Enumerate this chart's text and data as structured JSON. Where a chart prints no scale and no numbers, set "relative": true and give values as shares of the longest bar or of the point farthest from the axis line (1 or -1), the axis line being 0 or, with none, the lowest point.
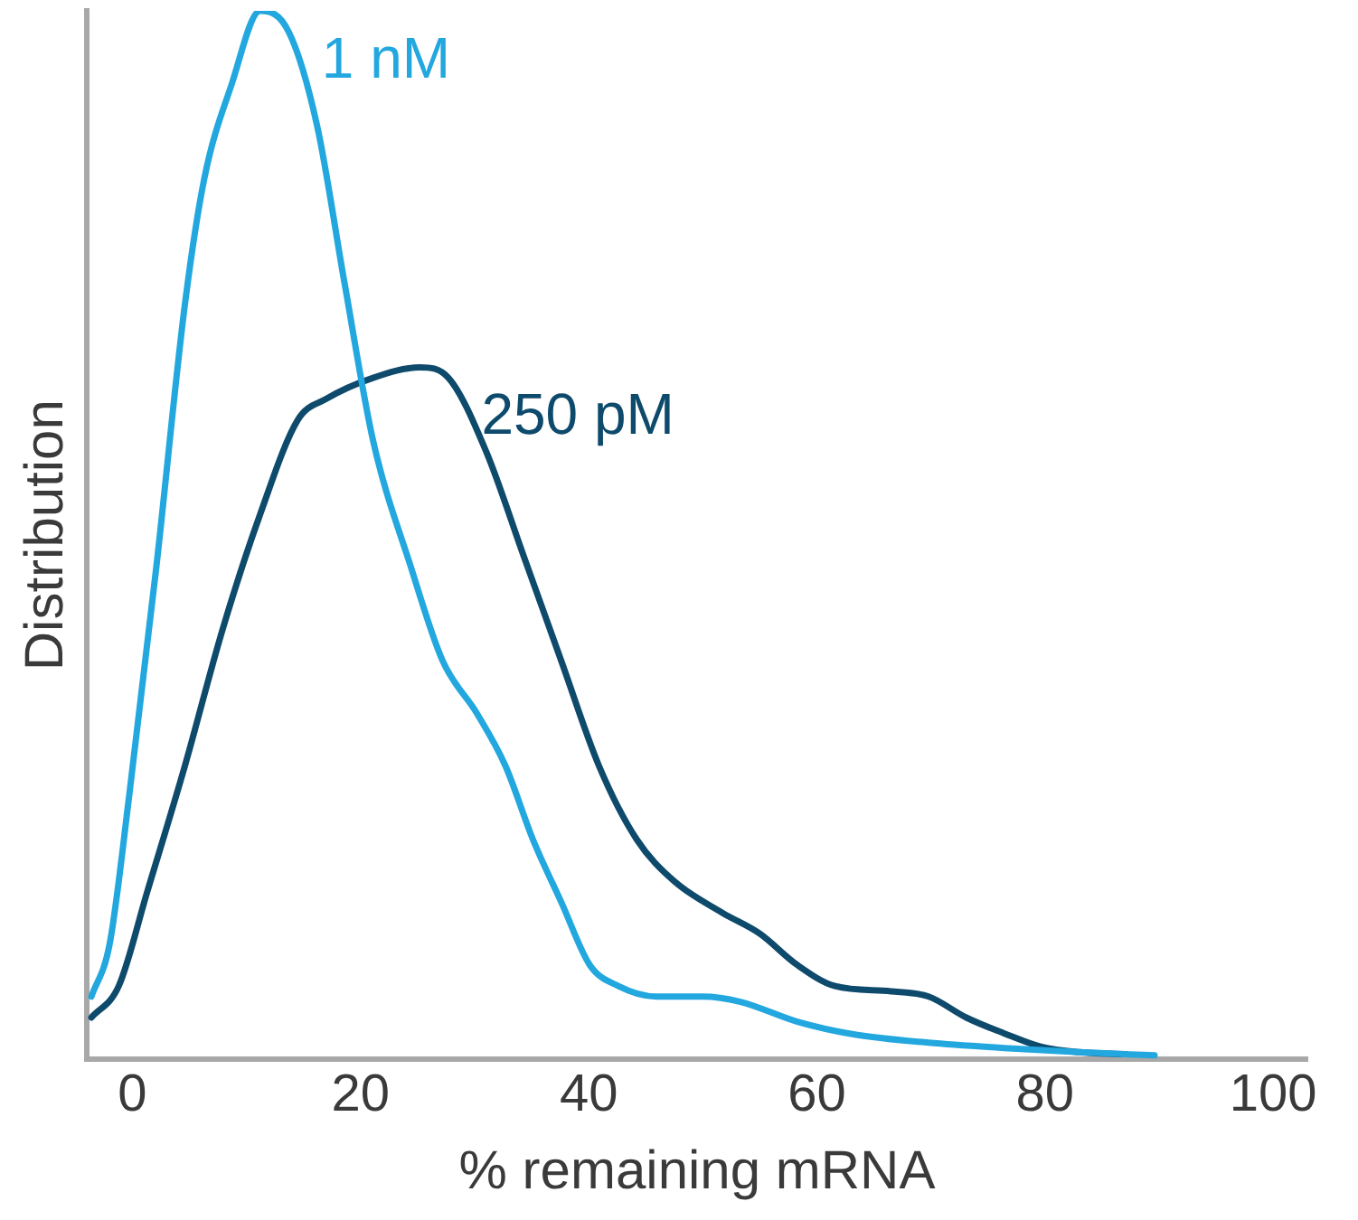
{
  "chart_data": {
    "type": "line",
    "xlabel": "% remaining mRNA",
    "ylabel": "Distribution",
    "relative": true,
    "xlim": [
      -4,
      103
    ],
    "xticks": [
      0,
      20,
      40,
      60,
      80,
      100
    ],
    "grid": false,
    "legend": false,
    "marker": "none",
    "line_style": "solid",
    "series": [
      {
        "name": "1 nM",
        "color": "#22a7df",
        "x": [
          -3.6,
          -2,
          -0.3,
          2.1,
          4.6,
          6.3,
          8.7,
          11.2,
          13.7,
          16.2,
          18.6,
          21.1,
          24.4,
          27.2,
          30.2,
          32.7,
          35.1,
          37.6,
          40.1,
          42.6,
          45.9,
          50,
          53.3,
          58.3,
          63.2,
          69.8,
          76.4,
          83,
          89.6
        ],
        "values": [
          0.06,
          0.11,
          0.25,
          0.47,
          0.72,
          0.84,
          0.93,
          1,
          0.98,
          0.89,
          0.74,
          0.59,
          0.47,
          0.38,
          0.33,
          0.28,
          0.21,
          0.15,
          0.09,
          0.07,
          0.06,
          0.06,
          0.055,
          0.036,
          0.024,
          0.016,
          0.011,
          0.007,
          0.004
        ]
      },
      {
        "name": "250 pM",
        "color": "#0e4a6b",
        "x": [
          -3.6,
          -1.2,
          1.3,
          4.6,
          7.9,
          11.2,
          14.5,
          17,
          21.1,
          25.2,
          27.7,
          31,
          34.3,
          37.6,
          40.9,
          44.2,
          47.5,
          51.7,
          55,
          58.3,
          61.6,
          66.5,
          69.8,
          73.1,
          76.4,
          79.7,
          83,
          87.1
        ],
        "values": [
          0.04,
          0.07,
          0.16,
          0.28,
          0.41,
          0.52,
          0.61,
          0.63,
          0.65,
          0.66,
          0.65,
          0.58,
          0.48,
          0.38,
          0.28,
          0.21,
          0.17,
          0.14,
          0.12,
          0.09,
          0.07,
          0.065,
          0.06,
          0.04,
          0.025,
          0.012,
          0.007,
          0.005
        ]
      }
    ]
  }
}
